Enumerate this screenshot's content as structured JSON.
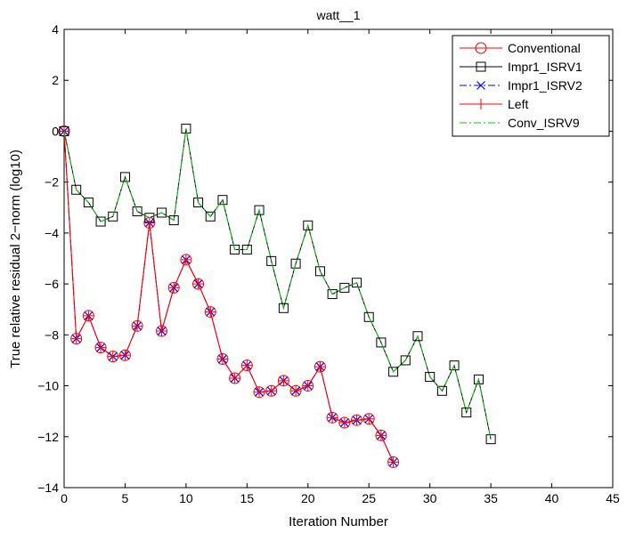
{
  "chart_data": {
    "type": "line",
    "title": "watt__1",
    "xlabel": "Iteration Number",
    "ylabel": "True relative residual 2−norm (log10)",
    "xlim": [
      0,
      45
    ],
    "ylim": [
      -14,
      4
    ],
    "xticks": [
      0,
      5,
      10,
      15,
      20,
      25,
      30,
      35,
      40,
      45
    ],
    "yticks": [
      4,
      2,
      0,
      -2,
      -4,
      -6,
      -8,
      -10,
      -12,
      -14
    ],
    "xtick_labels": [
      "0",
      "5",
      "10",
      "15",
      "20",
      "25",
      "30",
      "35",
      "40",
      "45"
    ],
    "ytick_labels": [
      "4",
      "2",
      "0",
      "−2",
      "−4",
      "−6",
      "−8",
      "−10",
      "−12",
      "−14"
    ],
    "legend_position": "top-right",
    "grid": false,
    "series": [
      {
        "name": "Conventional",
        "color": "#ff0000",
        "line_style": "solid",
        "marker": "circle",
        "x": [
          0,
          1,
          2,
          3,
          4,
          5,
          6,
          7,
          8,
          9,
          10,
          11,
          12,
          13,
          14,
          15,
          16,
          17,
          18,
          19,
          20,
          21,
          22,
          23,
          24,
          25,
          26,
          27
        ],
        "y": [
          0,
          -8.15,
          -7.25,
          -8.5,
          -8.85,
          -8.8,
          -7.65,
          -3.6,
          -7.85,
          -6.15,
          -5.05,
          -6.0,
          -7.1,
          -8.95,
          -9.7,
          -9.2,
          -10.25,
          -10.2,
          -9.8,
          -10.2,
          -10.0,
          -9.25,
          -11.25,
          -11.45,
          -11.35,
          -11.3,
          -11.95,
          -13.0
        ]
      },
      {
        "name": "Impr1_ISRV1",
        "color": "#000000",
        "line_style": "solid",
        "marker": "square",
        "x": [
          0,
          1,
          2,
          3,
          4,
          5,
          6,
          7,
          8,
          9,
          10,
          11,
          12,
          13,
          14,
          15,
          16,
          17,
          18,
          19,
          20,
          21,
          22,
          23,
          24,
          25,
          26,
          27,
          28,
          29,
          30,
          31,
          32,
          33,
          34,
          35
        ],
        "y": [
          0,
          -2.3,
          -2.8,
          -3.55,
          -3.35,
          -1.8,
          -3.15,
          -3.4,
          -3.2,
          -3.5,
          0.1,
          -2.8,
          -3.35,
          -2.7,
          -4.65,
          -4.65,
          -3.1,
          -5.1,
          -6.95,
          -5.2,
          -3.7,
          -5.5,
          -6.4,
          -6.15,
          -5.95,
          -7.3,
          -8.3,
          -9.45,
          -9.0,
          -8.05,
          -9.65,
          -10.2,
          -9.2,
          -11.05,
          -9.75,
          -12.1
        ]
      },
      {
        "name": "Impr1_ISRV2",
        "color": "#0000ff",
        "line_style": "dashdot",
        "marker": "x",
        "x": [
          0,
          1,
          2,
          3,
          4,
          5,
          6,
          7,
          8,
          9,
          10,
          11,
          12,
          13,
          14,
          15,
          16,
          17,
          18,
          19,
          20,
          21,
          22,
          23,
          24,
          25,
          26,
          27
        ],
        "y": [
          0,
          -8.15,
          -7.25,
          -8.5,
          -8.85,
          -8.8,
          -7.65,
          -3.6,
          -7.85,
          -6.15,
          -5.05,
          -6.0,
          -7.1,
          -8.95,
          -9.7,
          -9.2,
          -10.25,
          -10.2,
          -9.8,
          -10.2,
          -10.0,
          -9.25,
          -11.25,
          -11.45,
          -11.35,
          -11.3,
          -11.95,
          -13.0
        ]
      },
      {
        "name": "Left",
        "color": "#ff0000",
        "line_style": "solid",
        "marker": "plus",
        "x": [
          0,
          1,
          2,
          3,
          4,
          5,
          6,
          7,
          8,
          9,
          10,
          11,
          12,
          13,
          14,
          15,
          16,
          17,
          18,
          19,
          20,
          21,
          22,
          23,
          24,
          25,
          26,
          27
        ],
        "y": [
          0,
          -8.15,
          -7.25,
          -8.5,
          -8.85,
          -8.8,
          -7.65,
          -3.6,
          -7.85,
          -6.15,
          -5.05,
          -6.0,
          -7.1,
          -8.95,
          -9.7,
          -9.2,
          -10.25,
          -10.2,
          -9.8,
          -10.2,
          -10.0,
          -9.25,
          -11.25,
          -11.45,
          -11.35,
          -11.3,
          -11.95,
          -13.0
        ]
      },
      {
        "name": "Conv_ISRV9",
        "color": "#00cc00",
        "line_style": "dashdot",
        "marker": "none",
        "x": [
          0,
          1,
          2,
          3,
          4,
          5,
          6,
          7,
          8,
          9,
          10,
          11,
          12,
          13,
          14,
          15,
          16,
          17,
          18,
          19,
          20,
          21,
          22,
          23,
          24,
          25,
          26,
          27,
          28,
          29,
          30,
          31,
          32,
          33,
          34,
          35
        ],
        "y": [
          0,
          -2.3,
          -2.8,
          -3.55,
          -3.35,
          -1.8,
          -3.15,
          -3.4,
          -3.2,
          -3.5,
          0.1,
          -2.8,
          -3.35,
          -2.7,
          -4.65,
          -4.65,
          -3.1,
          -5.1,
          -6.95,
          -5.2,
          -3.7,
          -5.5,
          -6.4,
          -6.15,
          -5.95,
          -7.3,
          -8.3,
          -9.45,
          -9.0,
          -8.05,
          -9.65,
          -10.2,
          -9.2,
          -11.05,
          -9.75,
          -12.1
        ]
      }
    ]
  }
}
